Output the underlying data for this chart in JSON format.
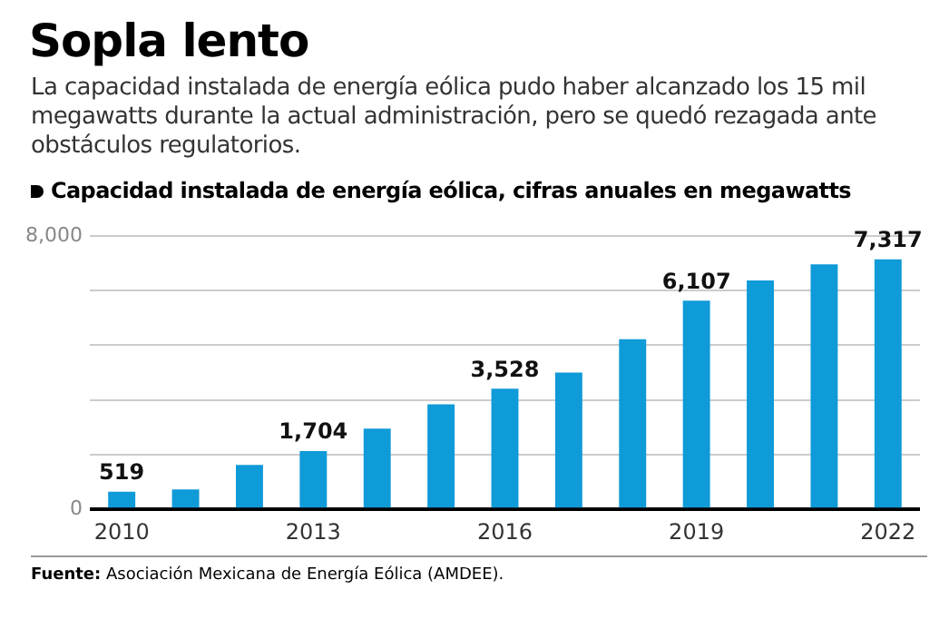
{
  "chart_data": {
    "type": "bar",
    "title": "Sopla lento",
    "subtitle": "La capacidad instalada de energía eólica pudo haber alcanzado los 15 mil megawatts durante la actual administración, pero se quedó rezagada ante obstáculos regulatorios.",
    "annotations": [
      "Capacidad instalada de energía eólica, cifras anuales en megawatts",
      "Fuente: Asociación Mexicana de Energía Eólica (AMDEE)."
    ],
    "categories": [
      "2010",
      null,
      null,
      "2013",
      null,
      null,
      "2016",
      null,
      null,
      "2019",
      null,
      null,
      "2022"
    ],
    "values": [
      519,
      580,
      1300,
      1704,
      2360,
      3070,
      3528,
      4000,
      4980,
      6107,
      6700,
      7170,
      7317
    ],
    "value_labels": [
      "519",
      null,
      null,
      "1,704",
      null,
      null,
      "3,528",
      null,
      null,
      "6,107",
      null,
      null,
      "7,317"
    ],
    "color": "#0f9ad8",
    "ylim": [
      0,
      8000
    ],
    "yticks": [
      0,
      {
        "value": 1600,
        "label": null
      },
      {
        "value": 3200,
        "label": null
      },
      {
        "value": 4800,
        "label": null
      },
      {
        "value": 6400,
        "label": null
      },
      {
        "value": 8000,
        "label": "8,000"
      }
    ],
    "grid": "y"
  }
}
